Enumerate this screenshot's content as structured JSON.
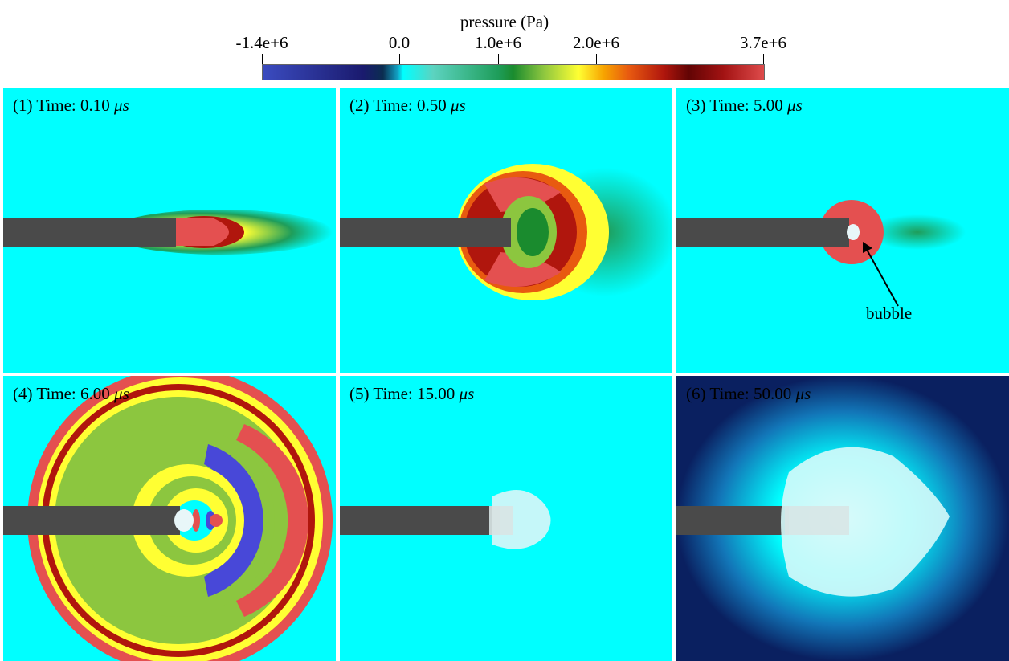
{
  "colorbar": {
    "title": "pressure (Pa)",
    "ticks": [
      "-1.4e+6",
      "0.0",
      "1.0e+6",
      "2.0e+6",
      "3.7e+6"
    ]
  },
  "panels": [
    {
      "prefix": "(1) Time: 0.10 ",
      "unit": "μs"
    },
    {
      "prefix": "(2) Time: 0.50 ",
      "unit": "μs"
    },
    {
      "prefix": "(3) Time: 5.00 ",
      "unit": "μs"
    },
    {
      "prefix": "(4) Time: 6.00 ",
      "unit": "μs"
    },
    {
      "prefix": "(5) Time: 15.00 ",
      "unit": "μs"
    },
    {
      "prefix": "(6) Time: 50.00 ",
      "unit": "μs"
    }
  ],
  "annotation": "bubble",
  "colors": {
    "background_field": "#00ffff",
    "fiber": "#4a4a4a",
    "high": "#e45050",
    "low": "#4848d8"
  }
}
